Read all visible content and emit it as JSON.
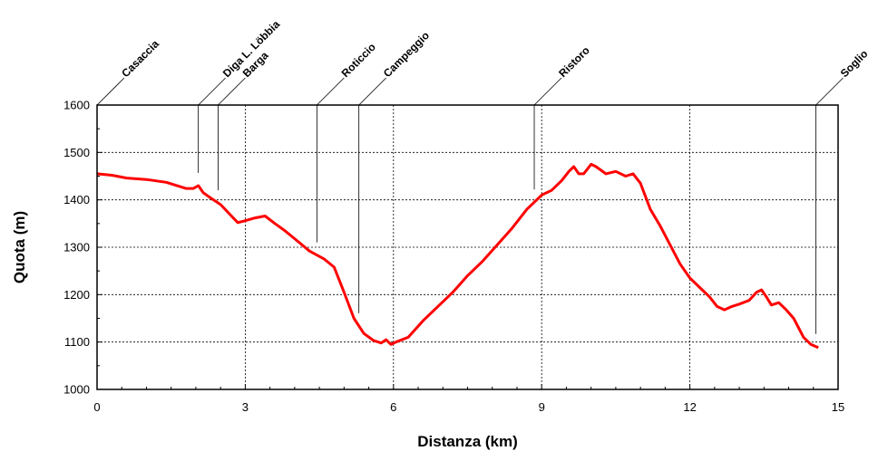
{
  "chart_data": {
    "type": "line",
    "xlabel": "Distanza (km)",
    "ylabel": "Quota (m)",
    "xlim": [
      0,
      15
    ],
    "ylim": [
      1000,
      1600
    ],
    "xticks": [
      0,
      3,
      6,
      9,
      12,
      15
    ],
    "yticks": [
      1000,
      1100,
      1200,
      1300,
      1400,
      1500,
      1600
    ],
    "grid": "dashed at major ticks",
    "line_color": "#ff0000",
    "series": [
      {
        "x": [
          0,
          0.3,
          0.6,
          1.0,
          1.4,
          1.8,
          1.95,
          2.05,
          2.15,
          2.3,
          2.5,
          2.7,
          2.85,
          3.0,
          3.2,
          3.4,
          3.6,
          3.8,
          4.0,
          4.3,
          4.6,
          4.8,
          5.0,
          5.2,
          5.4,
          5.6,
          5.75,
          5.85,
          5.95,
          6.05,
          6.3,
          6.6,
          6.9,
          7.2,
          7.5,
          7.8,
          8.1,
          8.4,
          8.7,
          9.0,
          9.2,
          9.4,
          9.55,
          9.65,
          9.75,
          9.85,
          10.0,
          10.1,
          10.3,
          10.5,
          10.7,
          10.85,
          11.0,
          11.2,
          11.4,
          11.6,
          11.8,
          12.0,
          12.2,
          12.4,
          12.55,
          12.7,
          12.85,
          13.0,
          13.2,
          13.35,
          13.45,
          13.55,
          13.65,
          13.8,
          13.95,
          14.1,
          14.3,
          14.45,
          14.6
        ],
        "y": [
          1455,
          1452,
          1446,
          1443,
          1437,
          1424,
          1424,
          1430,
          1415,
          1404,
          1390,
          1368,
          1352,
          1356,
          1362,
          1366,
          1350,
          1335,
          1318,
          1292,
          1275,
          1258,
          1205,
          1150,
          1118,
          1103,
          1098,
          1105,
          1095,
          1100,
          1110,
          1145,
          1175,
          1205,
          1240,
          1270,
          1305,
          1340,
          1380,
          1410,
          1420,
          1440,
          1460,
          1470,
          1455,
          1455,
          1475,
          1470,
          1455,
          1460,
          1450,
          1455,
          1435,
          1380,
          1345,
          1305,
          1265,
          1235,
          1215,
          1195,
          1175,
          1168,
          1175,
          1180,
          1188,
          1205,
          1210,
          1195,
          1178,
          1183,
          1168,
          1150,
          1110,
          1095,
          1088
        ]
      }
    ],
    "waypoints": [
      {
        "name": "Casaccia",
        "x": 0
      },
      {
        "name": "Diga L. Löbbia",
        "x": 2.05
      },
      {
        "name": "Barga",
        "x": 2.45
      },
      {
        "name": "Roticcio",
        "x": 4.45
      },
      {
        "name": "Campeggio",
        "x": 5.3
      },
      {
        "name": "Ristoro",
        "x": 8.85
      },
      {
        "name": "Soglio",
        "x": 14.55
      }
    ]
  }
}
